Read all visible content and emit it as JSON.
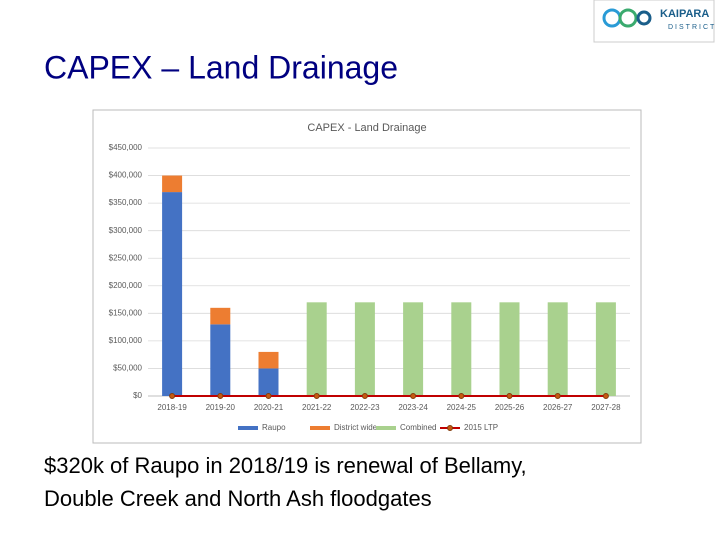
{
  "header": {
    "title": "CAPEX – Land Drainage",
    "logo": {
      "name": "KAIPARA",
      "sub": "DISTRICT"
    }
  },
  "chart_data": {
    "type": "stacked_bar_line",
    "title": "CAPEX - Land Drainage",
    "categories": [
      "2018-19",
      "2019-20",
      "2020-21",
      "2021-22",
      "2022-23",
      "2023-24",
      "2024-25",
      "2025-26",
      "2026-27",
      "2027-28"
    ],
    "series": [
      {
        "name": "Raupo",
        "color": "#4472c4",
        "values": [
          370000,
          130000,
          50000,
          null,
          null,
          null,
          null,
          null,
          null,
          null
        ]
      },
      {
        "name": "District wide",
        "color": "#ed7d31",
        "values": [
          30000,
          30000,
          30000,
          null,
          null,
          null,
          null,
          null,
          null,
          null
        ]
      },
      {
        "name": "Combined",
        "color": "#a9d18e",
        "values": [
          null,
          null,
          null,
          170000,
          170000,
          170000,
          170000,
          170000,
          170000,
          170000
        ]
      },
      {
        "name": "2015 LTP",
        "color": "#c00000",
        "kind": "line",
        "values": [
          0,
          0,
          0,
          0,
          0,
          0,
          0,
          0,
          0,
          0
        ]
      }
    ],
    "ylim": [
      0,
      450000
    ],
    "yticks": [
      {
        "value": 0,
        "label": "$0"
      },
      {
        "value": 50000,
        "label": "$50,000"
      },
      {
        "value": 100000,
        "label": "$100,000"
      },
      {
        "value": 150000,
        "label": "$150,000"
      },
      {
        "value": 200000,
        "label": "$200,000"
      },
      {
        "value": 250000,
        "label": "$250,000"
      },
      {
        "value": 300000,
        "label": "$300,000"
      },
      {
        "value": 350000,
        "label": "$350,000"
      },
      {
        "value": 400000,
        "label": "$400,000"
      },
      {
        "value": 450000,
        "label": "$450,000"
      }
    ],
    "grid": true,
    "legend": "bottom"
  },
  "caption": [
    "$320k of Raupo in 2018/19 is renewal of Bellamy,",
    "Double Creek and North Ash floodgates"
  ]
}
